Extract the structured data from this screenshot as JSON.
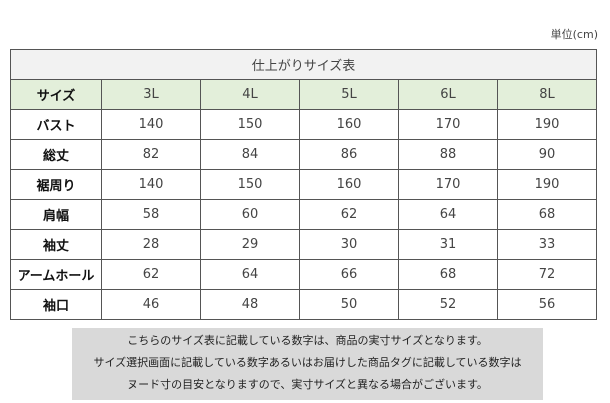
{
  "unit": "単位(cm)",
  "title": "仕上がりサイズ表",
  "header": {
    "label": "サイズ",
    "sizes": [
      "3L",
      "4L",
      "5L",
      "6L",
      "8L"
    ]
  },
  "rows": [
    {
      "label": "バスト",
      "values": [
        "140",
        "150",
        "160",
        "170",
        "190"
      ]
    },
    {
      "label": "総丈",
      "values": [
        "82",
        "84",
        "86",
        "88",
        "90"
      ]
    },
    {
      "label": "裾周り",
      "values": [
        "140",
        "150",
        "160",
        "170",
        "190"
      ]
    },
    {
      "label": "肩幅",
      "values": [
        "58",
        "60",
        "62",
        "64",
        "68"
      ]
    },
    {
      "label": "袖丈",
      "values": [
        "28",
        "29",
        "30",
        "31",
        "33"
      ]
    },
    {
      "label": "アームホール",
      "values": [
        "62",
        "64",
        "66",
        "68",
        "72"
      ]
    },
    {
      "label": "袖口",
      "values": [
        "46",
        "48",
        "50",
        "52",
        "56"
      ]
    }
  ],
  "notes": [
    "こちらのサイズ表に記載している数字は、商品の実寸サイズとなります。",
    "サイズ選択画面に記載している数字あるいはお届けした商品タグに記載している数字は",
    "ヌード寸の目安となりますので、実寸サイズと異なる場合がございます。"
  ]
}
